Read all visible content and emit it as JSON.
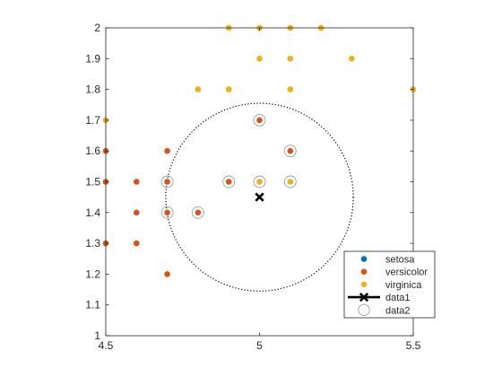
{
  "chart_data": {
    "type": "scatter",
    "xlim": [
      4.5,
      5.5
    ],
    "ylim": [
      1,
      2
    ],
    "xticks": [
      "4.5",
      "5",
      "5.5"
    ],
    "yticks": [
      "1",
      "1.1",
      "1.2",
      "1.3",
      "1.4",
      "1.5",
      "1.6",
      "1.7",
      "1.8",
      "1.9",
      "2"
    ],
    "grid": false,
    "legend_position": "bottom-right",
    "series": [
      {
        "name": "setosa",
        "color": "#0072BD",
        "marker": "dot",
        "points": []
      },
      {
        "name": "versicolor",
        "color": "#D95319",
        "marker": "dot",
        "points": [
          [
            4.5,
            1.3
          ],
          [
            4.5,
            1.5
          ],
          [
            4.5,
            1.6
          ],
          [
            4.6,
            1.3
          ],
          [
            4.6,
            1.4
          ],
          [
            4.6,
            1.5
          ],
          [
            4.7,
            1.2
          ],
          [
            4.7,
            1.4
          ],
          [
            4.7,
            1.5
          ],
          [
            4.7,
            1.6
          ],
          [
            4.8,
            1.4
          ],
          [
            4.9,
            1.5
          ],
          [
            5.0,
            1.7
          ],
          [
            5.1,
            1.6
          ]
        ]
      },
      {
        "name": "virginica",
        "color": "#EDB120",
        "marker": "dot",
        "points": [
          [
            4.5,
            1.7
          ],
          [
            4.8,
            1.8
          ],
          [
            4.9,
            1.8
          ],
          [
            4.9,
            2.0
          ],
          [
            5.0,
            2.0
          ],
          [
            5.1,
            2.0
          ],
          [
            5.2,
            2.0
          ],
          [
            5.0,
            1.9
          ],
          [
            5.1,
            1.9
          ],
          [
            5.3,
            1.9
          ],
          [
            5.1,
            1.8
          ],
          [
            5.5,
            1.8
          ],
          [
            5.0,
            1.5
          ],
          [
            5.1,
            1.5
          ]
        ]
      },
      {
        "name": "data1",
        "color": "#000000",
        "marker": "x",
        "points": [
          [
            5.0,
            1.45
          ]
        ]
      },
      {
        "name": "data2",
        "color": "#a0a0a0",
        "marker": "open-circle",
        "points": [
          [
            5.0,
            1.7
          ],
          [
            5.1,
            1.6
          ],
          [
            4.7,
            1.5
          ],
          [
            4.9,
            1.5
          ],
          [
            5.0,
            1.5
          ],
          [
            5.1,
            1.5
          ],
          [
            4.7,
            1.4
          ],
          [
            4.8,
            1.4
          ]
        ]
      }
    ],
    "circle": {
      "center": [
        5.0,
        1.45
      ],
      "radius": 0.305,
      "style": "dotted",
      "color": "#000000"
    }
  }
}
